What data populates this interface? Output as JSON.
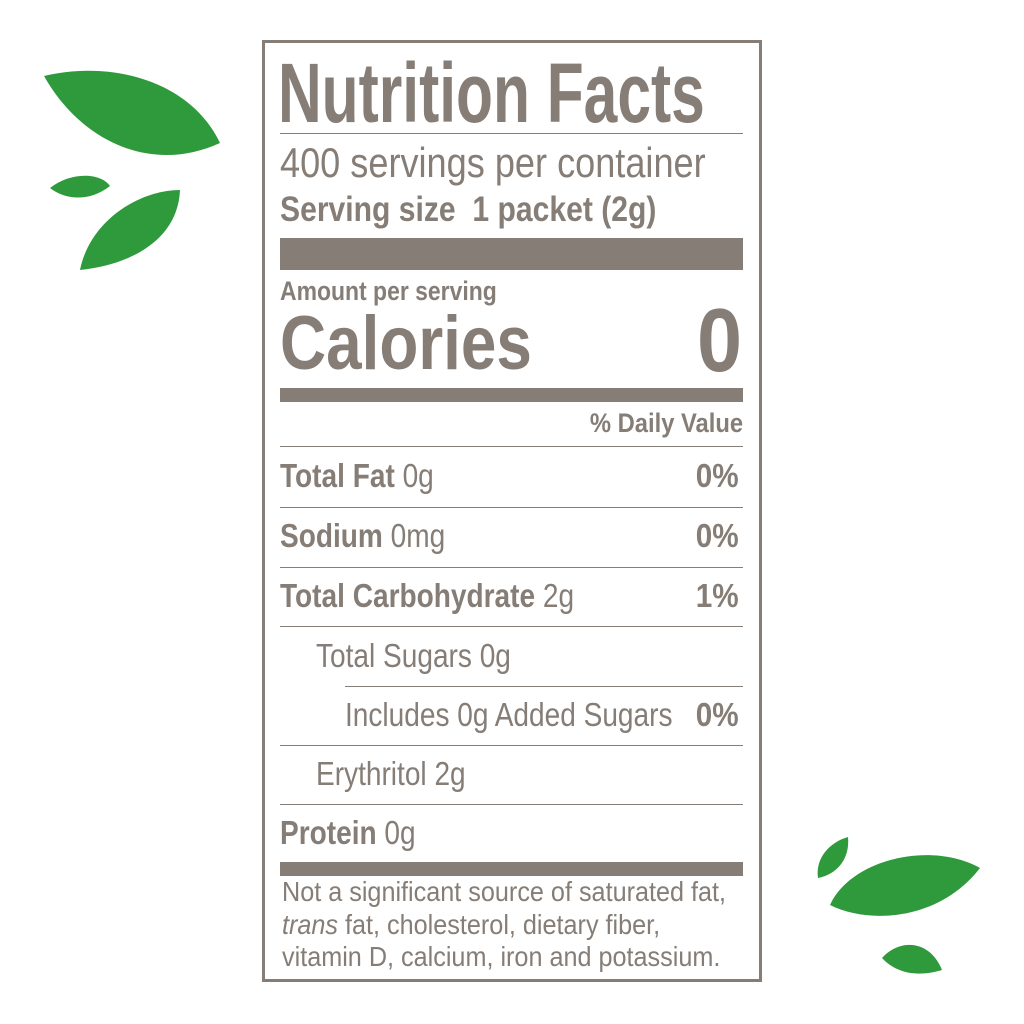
{
  "colors": {
    "label": "#857d76",
    "leaf": "#2e9a3c"
  },
  "title": "Nutrition Facts",
  "servings_per_container": "400 servings per container",
  "serving_size_label": "Serving size",
  "serving_size_value": "1 packet (2g)",
  "amount_per_serving": "Amount per serving",
  "calories_label": "Calories",
  "calories_value": "0",
  "daily_value_header": "% Daily Value",
  "nutrients": [
    {
      "name": "Total Fat",
      "amount": "0g",
      "dv": "0%"
    },
    {
      "name": "Sodium",
      "amount": "0mg",
      "dv": "0%"
    },
    {
      "name": "Total Carbohydrate",
      "amount": "2g",
      "dv": "1%"
    },
    {
      "name": "Total Sugars 0g"
    },
    {
      "name": "Includes 0g Added Sugars",
      "dv": "0%"
    },
    {
      "name": "Erythritol 2g"
    },
    {
      "name": "Protein",
      "amount": "0g"
    }
  ],
  "footnote": {
    "line1": "Not a significant source of saturated fat,",
    "line2_italic": "trans",
    "line2_rest": " fat, cholesterol, dietary fiber,",
    "line3": "vitamin D, calcium, iron and potassium."
  }
}
